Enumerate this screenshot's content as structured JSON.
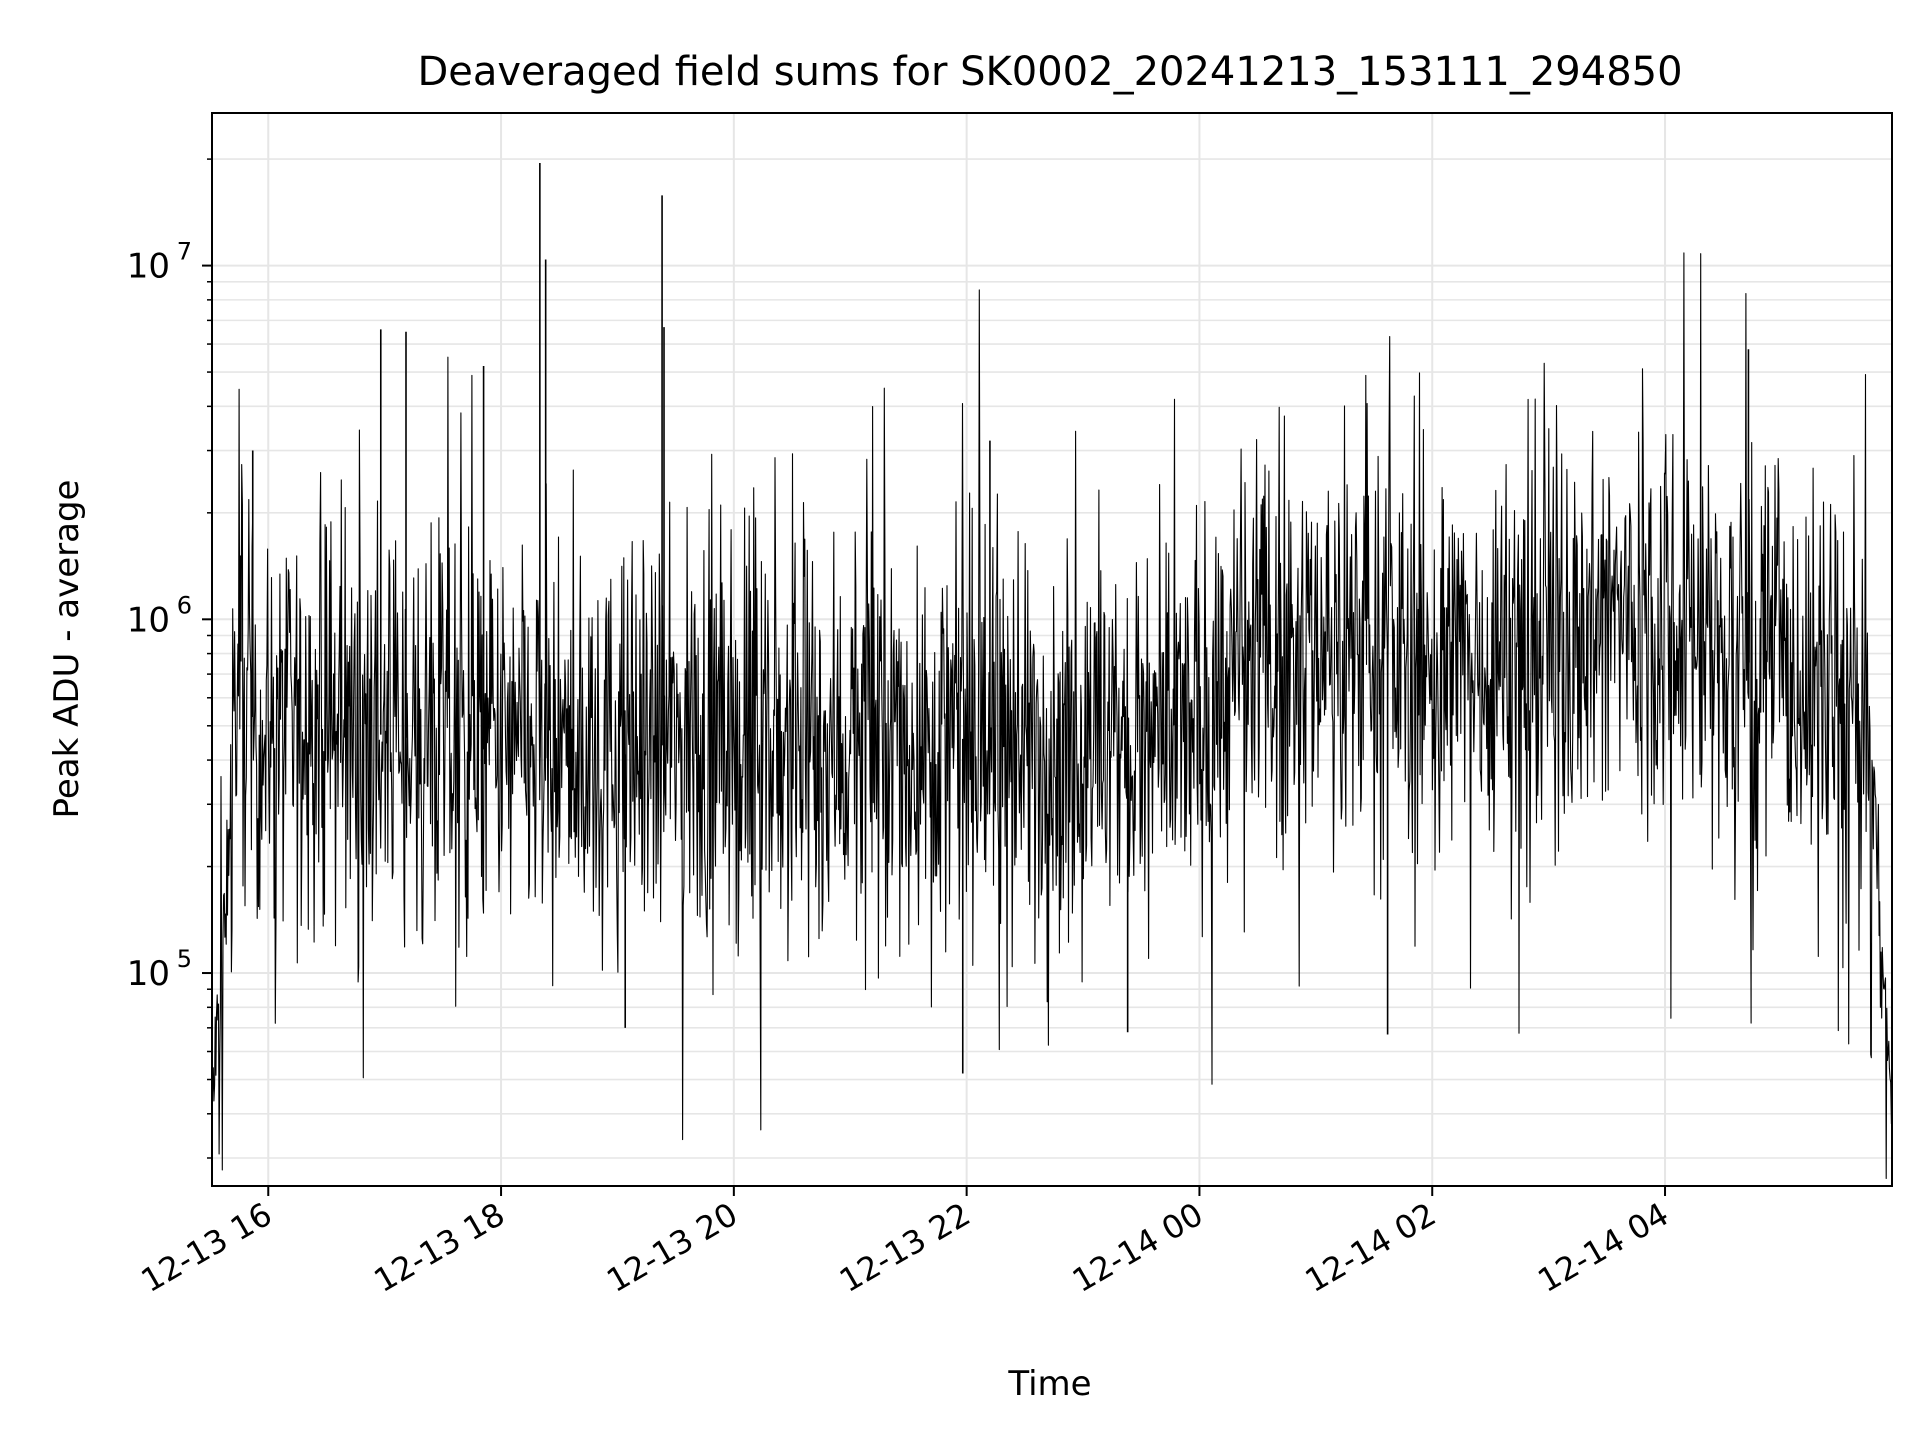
{
  "chart_data": {
    "type": "line",
    "title": "Deaveraged field sums for SK0002_20241213_153111_294850",
    "xlabel": "Time",
    "ylabel": "Peak ADU - average",
    "x_ticks": [
      "12-13 16",
      "12-13 18",
      "12-13 20",
      "12-13 22",
      "12-14 00",
      "12-14 02",
      "12-14 04"
    ],
    "y_ticks": [
      {
        "base": "10",
        "exp": "5",
        "value": 100000
      },
      {
        "base": "10",
        "exp": "6",
        "value": 1000000
      },
      {
        "base": "10",
        "exp": "7",
        "value": 10000000
      }
    ],
    "xlim": [
      "2024-12-13 15:31",
      "2024-12-14 05:57"
    ],
    "ylim": [
      25000,
      27000000
    ],
    "yscale": "log",
    "grid": true,
    "line_color": "#000000",
    "grid_color": "#e6e6e6",
    "series": [
      {
        "x": [
          "2024-12-13 15:31",
          "2024-12-13 15:33",
          "2024-12-13 15:36",
          "2024-12-13 15:39",
          "2024-12-13 15:42",
          "2024-12-13 15:46",
          "2024-12-13 15:50",
          "2024-12-13 15:55",
          "2024-12-13 16:00",
          "2024-12-13 16:30",
          "2024-12-13 17:00",
          "2024-12-13 17:30",
          "2024-12-13 18:00",
          "2024-12-13 18:30",
          "2024-12-13 19:00",
          "2024-12-13 19:30",
          "2024-12-13 20:00",
          "2024-12-13 20:30",
          "2024-12-13 21:00",
          "2024-12-13 21:30",
          "2024-12-13 22:00",
          "2024-12-13 22:30",
          "2024-12-13 23:00",
          "2024-12-13 23:30",
          "2024-12-14 00:00",
          "2024-12-14 00:30",
          "2024-12-14 01:00",
          "2024-12-14 01:30",
          "2024-12-14 02:00",
          "2024-12-14 02:30",
          "2024-12-14 03:00",
          "2024-12-14 03:30",
          "2024-12-14 04:00",
          "2024-12-14 04:30",
          "2024-12-14 05:00",
          "2024-12-14 05:30",
          "2024-12-14 05:40",
          "2024-12-14 05:48",
          "2024-12-14 05:52",
          "2024-12-14 05:57"
        ],
        "y": [
          40000,
          60000,
          90000,
          200000,
          500000,
          600000,
          550000,
          500000,
          480000,
          500000,
          470000,
          450000,
          420000,
          400000,
          410000,
          450000,
          430000,
          420000,
          440000,
          450000,
          460000,
          440000,
          430000,
          420000,
          500000,
          800000,
          900000,
          850000,
          700000,
          800000,
          900000,
          1000000,
          1100000,
          800000,
          700000,
          600000,
          500000,
          300000,
          100000,
          40000
        ]
      }
    ],
    "spikes": [
      {
        "x": "2024-12-13 15:52",
        "y": 3000000
      },
      {
        "x": "2024-12-13 16:58",
        "y": 6600000
      },
      {
        "x": "2024-12-13 17:11",
        "y": 6500000
      },
      {
        "x": "2024-12-13 17:51",
        "y": 5200000
      },
      {
        "x": "2024-12-13 18:20",
        "y": 19500000
      },
      {
        "x": "2024-12-13 18:23",
        "y": 10400000
      },
      {
        "x": "2024-12-13 19:23",
        "y": 15800000
      },
      {
        "x": "2024-12-13 19:24",
        "y": 6700000
      },
      {
        "x": "2024-12-13 22:12",
        "y": 3200000
      },
      {
        "x": "2024-12-14 04:43",
        "y": 5800000
      }
    ],
    "dips": [
      {
        "x": "2024-12-13 21:58",
        "y": 52000
      },
      {
        "x": "2024-12-13 23:23",
        "y": 68000
      },
      {
        "x": "2024-12-13 19:04",
        "y": 70000
      },
      {
        "x": "2024-12-14 01:37",
        "y": 67000
      }
    ]
  }
}
